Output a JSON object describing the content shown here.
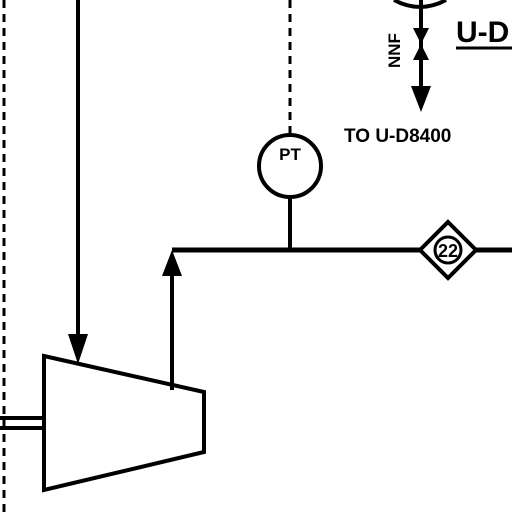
{
  "diagram": {
    "instrument": {
      "tag": "PT"
    },
    "line_label": {
      "text": "NNF"
    },
    "destination": {
      "text": "TO U-D8400"
    },
    "partial_title": {
      "text": "U-D"
    },
    "stream_marker": {
      "number": "22"
    }
  }
}
